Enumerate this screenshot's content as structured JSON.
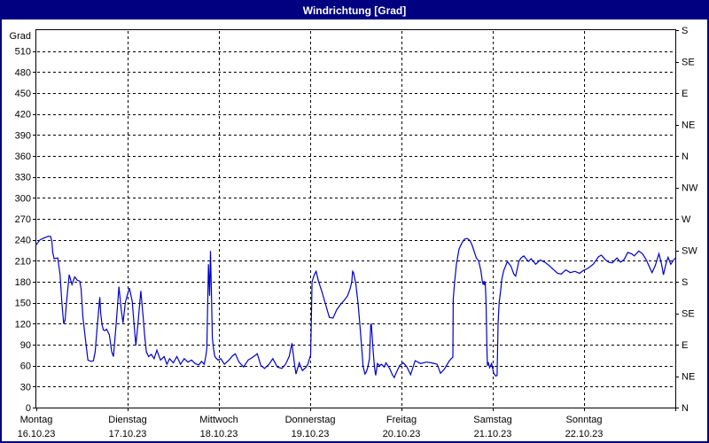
{
  "window": {
    "title": "Windrichtung [Grad]",
    "titlebar_color": "#000080",
    "border_color": "#000080",
    "background_color": "#ffffff"
  },
  "chart_data": {
    "type": "line",
    "title": "Windrichtung [Grad]",
    "grid": {
      "style": "dashed",
      "horizontal_every_deg": 30,
      "vertical_every": "day"
    },
    "legend_position": "none",
    "line_color": "#0000cc",
    "axis_color": "#000000",
    "y_axis_left": {
      "label": "Grad",
      "min": 0,
      "max": 540,
      "tick_step": 30,
      "tick_values": [
        0,
        30,
        60,
        90,
        120,
        150,
        180,
        210,
        240,
        270,
        300,
        330,
        360,
        390,
        420,
        450,
        480,
        510
      ],
      "tick_labels": [
        "0",
        "30",
        "60",
        "90",
        "120",
        "150",
        "180",
        "210",
        "240",
        "270",
        "300",
        "330",
        "360",
        "390",
        "420",
        "450",
        "480",
        "510"
      ]
    },
    "y_axis_right": {
      "unit": "compass",
      "tick_step": 45,
      "tick_values": [
        0,
        45,
        90,
        135,
        180,
        225,
        270,
        315,
        360,
        405,
        450,
        495,
        540
      ],
      "tick_labels_bottom_to_top": [
        "N",
        "NE",
        "E",
        "SE",
        "S",
        "SW",
        "W",
        "NW",
        "N",
        "NE",
        "E",
        "SE",
        "S"
      ]
    },
    "x_axis": {
      "span_days": 7,
      "days": [
        {
          "weekday": "Montag",
          "date": "16.10.23"
        },
        {
          "weekday": "Dienstag",
          "date": "17.10.23"
        },
        {
          "weekday": "Mittwoch",
          "date": "18.10.23"
        },
        {
          "weekday": "Donnerstag",
          "date": "19.10.23"
        },
        {
          "weekday": "Freitag",
          "date": "20.10.23"
        },
        {
          "weekday": "Samstag",
          "date": "21.10.23"
        },
        {
          "weekday": "Sonntag",
          "date": "22.10.23"
        }
      ]
    },
    "series": [
      {
        "name": "Windrichtung",
        "unit": "Grad",
        "points_day_value": [
          [
            0,
            233
          ],
          [
            0.04,
            240
          ],
          [
            0.09,
            243
          ],
          [
            0.13,
            245
          ],
          [
            0.155,
            245
          ],
          [
            0.17,
            238
          ],
          [
            0.18,
            222
          ],
          [
            0.195,
            213
          ],
          [
            0.235,
            214
          ],
          [
            0.26,
            190
          ],
          [
            0.28,
            150
          ],
          [
            0.3,
            120
          ],
          [
            0.315,
            125
          ],
          [
            0.33,
            150
          ],
          [
            0.36,
            190
          ],
          [
            0.39,
            176
          ],
          [
            0.42,
            187
          ],
          [
            0.45,
            182
          ],
          [
            0.475,
            181
          ],
          [
            0.49,
            170
          ],
          [
            0.51,
            130
          ],
          [
            0.545,
            90
          ],
          [
            0.565,
            68
          ],
          [
            0.6,
            66
          ],
          [
            0.625,
            67
          ],
          [
            0.645,
            80
          ],
          [
            0.67,
            120
          ],
          [
            0.695,
            158
          ],
          [
            0.705,
            135
          ],
          [
            0.72,
            118
          ],
          [
            0.735,
            111
          ],
          [
            0.75,
            110
          ],
          [
            0.77,
            112
          ],
          [
            0.8,
            104
          ],
          [
            0.825,
            80
          ],
          [
            0.845,
            73
          ],
          [
            0.875,
            120
          ],
          [
            0.905,
            173
          ],
          [
            0.93,
            140
          ],
          [
            0.95,
            121
          ],
          [
            0.975,
            150
          ],
          [
            0.99,
            158
          ],
          [
            1.019,
            171
          ],
          [
            1.05,
            152
          ],
          [
            1.07,
            120
          ],
          [
            1.09,
            89
          ],
          [
            1.11,
            115
          ],
          [
            1.145,
            167
          ],
          [
            1.17,
            130
          ],
          [
            1.185,
            105
          ],
          [
            1.205,
            80
          ],
          [
            1.23,
            73
          ],
          [
            1.26,
            76
          ],
          [
            1.29,
            70
          ],
          [
            1.32,
            82
          ],
          [
            1.36,
            68
          ],
          [
            1.4,
            73
          ],
          [
            1.43,
            62
          ],
          [
            1.46,
            70
          ],
          [
            1.5,
            64
          ],
          [
            1.54,
            73
          ],
          [
            1.58,
            62
          ],
          [
            1.62,
            70
          ],
          [
            1.66,
            65
          ],
          [
            1.7,
            68
          ],
          [
            1.74,
            63
          ],
          [
            1.78,
            61
          ],
          [
            1.81,
            66
          ],
          [
            1.84,
            62
          ],
          [
            1.858,
            75
          ],
          [
            1.868,
            85
          ],
          [
            1.885,
            205
          ],
          [
            1.898,
            160
          ],
          [
            1.908,
            224
          ],
          [
            1.92,
            150
          ],
          [
            1.928,
            100
          ],
          [
            1.94,
            85
          ],
          [
            1.955,
            73
          ],
          [
            1.975,
            70
          ],
          [
            1.99,
            68
          ],
          [
            2.02,
            70
          ],
          [
            2.06,
            62
          ],
          [
            2.11,
            68
          ],
          [
            2.15,
            74
          ],
          [
            2.18,
            77
          ],
          [
            2.22,
            65
          ],
          [
            2.27,
            58
          ],
          [
            2.32,
            68
          ],
          [
            2.37,
            72
          ],
          [
            2.42,
            77
          ],
          [
            2.46,
            60
          ],
          [
            2.5,
            56
          ],
          [
            2.55,
            62
          ],
          [
            2.59,
            70
          ],
          [
            2.64,
            58
          ],
          [
            2.69,
            56
          ],
          [
            2.73,
            62
          ],
          [
            2.77,
            73
          ],
          [
            2.8,
            92
          ],
          [
            2.83,
            60
          ],
          [
            2.845,
            48
          ],
          [
            2.88,
            64
          ],
          [
            2.915,
            53
          ],
          [
            2.95,
            57
          ],
          [
            2.975,
            62
          ],
          [
            2.995,
            71
          ],
          [
            3.005,
            75
          ],
          [
            3.012,
            120
          ],
          [
            3.02,
            180
          ],
          [
            3.045,
            190
          ],
          [
            3.065,
            195
          ],
          [
            3.09,
            181
          ],
          [
            3.13,
            165
          ],
          [
            3.17,
            147
          ],
          [
            3.21,
            129
          ],
          [
            3.25,
            128
          ],
          [
            3.29,
            140
          ],
          [
            3.33,
            147
          ],
          [
            3.37,
            153
          ],
          [
            3.41,
            160
          ],
          [
            3.44,
            171
          ],
          [
            3.455,
            180
          ],
          [
            3.465,
            195
          ],
          [
            3.475,
            193
          ],
          [
            3.5,
            177
          ],
          [
            3.525,
            148
          ],
          [
            3.545,
            118
          ],
          [
            3.565,
            84
          ],
          [
            3.58,
            59
          ],
          [
            3.6,
            48
          ],
          [
            3.615,
            51
          ],
          [
            3.63,
            57
          ],
          [
            3.65,
            70
          ],
          [
            3.663,
            118
          ],
          [
            3.67,
            120
          ],
          [
            3.69,
            80
          ],
          [
            3.705,
            57
          ],
          [
            3.717,
            46
          ],
          [
            3.737,
            63
          ],
          [
            3.76,
            60
          ],
          [
            3.78,
            62
          ],
          [
            3.81,
            58
          ],
          [
            3.83,
            64
          ],
          [
            3.87,
            56
          ],
          [
            3.9,
            47
          ],
          [
            3.92,
            43
          ],
          [
            3.95,
            52
          ],
          [
            3.98,
            60
          ],
          [
            4.02,
            64
          ],
          [
            4.06,
            58
          ],
          [
            4.1,
            47
          ],
          [
            4.15,
            67
          ],
          [
            4.21,
            63
          ],
          [
            4.27,
            65
          ],
          [
            4.33,
            64
          ],
          [
            4.39,
            62
          ],
          [
            4.427,
            49
          ],
          [
            4.47,
            55
          ],
          [
            4.52,
            66
          ],
          [
            4.545,
            70
          ],
          [
            4.563,
            72
          ],
          [
            4.567,
            155
          ],
          [
            4.583,
            180
          ],
          [
            4.602,
            205
          ],
          [
            4.631,
            227
          ],
          [
            4.66,
            235
          ],
          [
            4.69,
            241
          ],
          [
            4.72,
            242
          ],
          [
            4.75,
            239
          ],
          [
            4.775,
            232
          ],
          [
            4.8,
            222
          ],
          [
            4.82,
            214
          ],
          [
            4.845,
            210
          ],
          [
            4.87,
            196
          ],
          [
            4.885,
            181
          ],
          [
            4.895,
            176
          ],
          [
            4.905,
            181
          ],
          [
            4.912,
            175
          ],
          [
            4.917,
            180
          ],
          [
            4.922,
            165
          ],
          [
            4.927,
            147
          ],
          [
            4.932,
            112
          ],
          [
            4.937,
            80
          ],
          [
            4.942,
            60
          ],
          [
            4.95,
            65
          ],
          [
            4.966,
            57
          ],
          [
            4.987,
            63
          ],
          [
            5.01,
            49
          ],
          [
            5.034,
            45
          ],
          [
            5.048,
            46
          ],
          [
            5.058,
            120
          ],
          [
            5.07,
            150
          ],
          [
            5.085,
            166
          ],
          [
            5.1,
            184
          ],
          [
            5.12,
            196
          ],
          [
            5.16,
            209
          ],
          [
            5.2,
            202
          ],
          [
            5.23,
            191
          ],
          [
            5.25,
            188
          ],
          [
            5.285,
            209
          ],
          [
            5.31,
            214
          ],
          [
            5.34,
            217
          ],
          [
            5.39,
            209
          ],
          [
            5.42,
            213
          ],
          [
            5.47,
            205
          ],
          [
            5.52,
            211
          ],
          [
            5.57,
            208
          ],
          [
            5.62,
            203
          ],
          [
            5.66,
            198
          ],
          [
            5.71,
            192
          ],
          [
            5.75,
            191
          ],
          [
            5.8,
            197
          ],
          [
            5.85,
            193
          ],
          [
            5.9,
            195
          ],
          [
            5.95,
            192
          ],
          [
            5.99,
            196
          ],
          [
            6.04,
            199
          ],
          [
            6.1,
            205
          ],
          [
            6.16,
            216
          ],
          [
            6.19,
            218
          ],
          [
            6.23,
            212
          ],
          [
            6.27,
            208
          ],
          [
            6.31,
            207
          ],
          [
            6.36,
            214
          ],
          [
            6.4,
            208
          ],
          [
            6.44,
            212
          ],
          [
            6.48,
            222
          ],
          [
            6.52,
            220
          ],
          [
            6.55,
            217
          ],
          [
            6.6,
            224
          ],
          [
            6.64,
            220
          ],
          [
            6.68,
            212
          ],
          [
            6.72,
            200
          ],
          [
            6.745,
            193
          ],
          [
            6.78,
            203
          ],
          [
            6.82,
            220
          ],
          [
            6.85,
            205
          ],
          [
            6.87,
            190
          ],
          [
            6.9,
            207
          ],
          [
            6.92,
            215
          ],
          [
            6.95,
            205
          ],
          [
            6.975,
            210
          ],
          [
            7,
            214
          ]
        ]
      }
    ]
  }
}
